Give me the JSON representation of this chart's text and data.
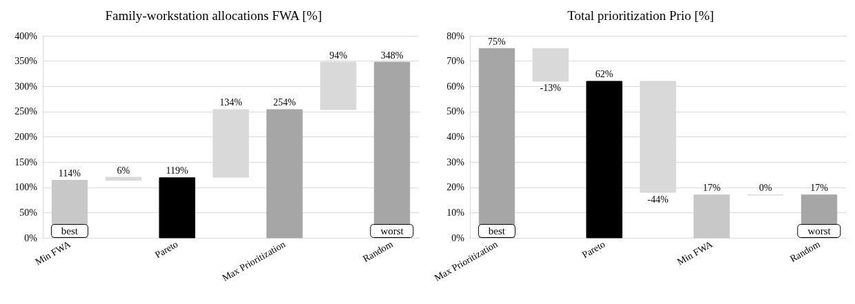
{
  "chart_data": [
    {
      "type": "bar",
      "title": "Family-workstation allocations FWA [%]",
      "categories": [
        "Min FWA",
        null,
        "Pareto",
        null,
        "Max Prioritization",
        null,
        "Random"
      ],
      "values": [
        114,
        6,
        119,
        134,
        254,
        94,
        348
      ],
      "base": [
        0,
        114,
        0,
        120,
        0,
        254,
        0
      ],
      "colors": [
        "#c8c8c8",
        "#d9d9d9",
        "#000000",
        "#d9d9d9",
        "#a6a6a6",
        "#d9d9d9",
        "#a6a6a6"
      ],
      "value_labels": [
        "114%",
        "6%",
        "119%",
        "134%",
        "254%",
        "94%",
        "348%"
      ],
      "ylim": [
        0,
        400
      ],
      "yticks": [
        {
          "value": 0,
          "label": "0%"
        },
        {
          "value": 50,
          "label": "50%"
        },
        {
          "value": 100,
          "label": "100%"
        },
        {
          "value": 150,
          "label": "150%"
        },
        {
          "value": 200,
          "label": "200%"
        },
        {
          "value": 250,
          "label": "250%"
        },
        {
          "value": 300,
          "label": "300%"
        },
        {
          "value": 350,
          "label": "350%"
        },
        {
          "value": 400,
          "label": "400%"
        }
      ],
      "grid": "y",
      "annotations": [
        {
          "text": "best",
          "x": "Min FWA",
          "y": 0
        },
        {
          "text": "worst",
          "x": "Random",
          "y": 0
        }
      ]
    },
    {
      "type": "bar",
      "title": "Total prioritization Prio [%]",
      "categories": [
        "Max Prioritization",
        null,
        "Pareto",
        null,
        "Min FWA",
        null,
        "Random"
      ],
      "values": [
        75,
        -13,
        62,
        -44,
        17,
        0,
        17
      ],
      "base": [
        0,
        75,
        0,
        62,
        0,
        17,
        0
      ],
      "colors": [
        "#a6a6a6",
        "#d9d9d9",
        "#000000",
        "#d9d9d9",
        "#c8c8c8",
        "#d9d9d9",
        "#a6a6a6"
      ],
      "value_labels": [
        "75%",
        "-13%",
        "62%",
        "-44%",
        "17%",
        "0%",
        "17%"
      ],
      "ylim": [
        0,
        80
      ],
      "yticks": [
        {
          "value": 0,
          "label": "0%"
        },
        {
          "value": 10,
          "label": "10%"
        },
        {
          "value": 20,
          "label": "20%"
        },
        {
          "value": 30,
          "label": "30%"
        },
        {
          "value": 40,
          "label": "40%"
        },
        {
          "value": 50,
          "label": "50%"
        },
        {
          "value": 60,
          "label": "60%"
        },
        {
          "value": 70,
          "label": "70%"
        },
        {
          "value": 80,
          "label": "80%"
        }
      ],
      "grid": "y",
      "annotations": [
        {
          "text": "best",
          "x": "Max Prioritization",
          "y": 0
        },
        {
          "text": "worst",
          "x": "Random",
          "y": 0
        }
      ]
    }
  ]
}
